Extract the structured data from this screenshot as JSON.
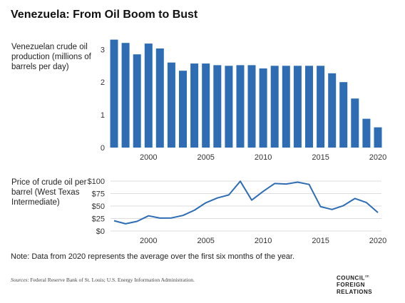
{
  "title": "Venezuela: From Oil Boom to Bust",
  "note": "Note: Data from 2020 represents the average over the first six months of the year.",
  "source": {
    "prefix": "Sources",
    "text": ": Federal Reserve Bank of St. Louis; U.S. Energy Information Administration."
  },
  "logo": {
    "line1": "COUNCIL",
    "on": "on",
    "line2": "FOREIGN",
    "line3": "RELATIONS"
  },
  "colors": {
    "bar": "#2e6db4",
    "line": "#2e6db4",
    "grid": "#dddddd"
  },
  "chart_data": [
    {
      "type": "bar",
      "ylabel": "Venezuelan crude oil production (millions of barrels per day)",
      "x": [
        1997,
        1998,
        1999,
        2000,
        2001,
        2002,
        2003,
        2004,
        2005,
        2006,
        2007,
        2008,
        2009,
        2010,
        2011,
        2012,
        2013,
        2014,
        2015,
        2016,
        2017,
        2018,
        2019,
        2020
      ],
      "values": [
        3.3,
        3.2,
        2.85,
        3.18,
        3.03,
        2.6,
        2.35,
        2.57,
        2.57,
        2.52,
        2.5,
        2.52,
        2.52,
        2.42,
        2.5,
        2.5,
        2.5,
        2.5,
        2.5,
        2.27,
        2.0,
        1.5,
        0.88,
        0.62
      ],
      "xticks": [
        "2000",
        "2005",
        "2010",
        "2015",
        "2020"
      ],
      "yticks": [
        "0",
        "1",
        "2",
        "3"
      ],
      "ylim": [
        0,
        3.4
      ],
      "grid": false
    },
    {
      "type": "line",
      "ylabel": "Price of crude oil per barrel (West Texas Intermediate)",
      "x": [
        1997,
        1998,
        1999,
        2000,
        2001,
        2002,
        2003,
        2004,
        2005,
        2006,
        2007,
        2008,
        2009,
        2010,
        2011,
        2012,
        2013,
        2014,
        2015,
        2016,
        2017,
        2018,
        2019,
        2020
      ],
      "values": [
        20.6,
        14.4,
        19.3,
        30.4,
        25.9,
        26.1,
        31.1,
        41.5,
        56.6,
        66.1,
        72.3,
        99.7,
        61.9,
        79.5,
        95.1,
        94.2,
        97.9,
        93.3,
        48.7,
        43.2,
        50.8,
        65.2,
        57.0,
        37.0
      ],
      "xticks": [
        "2000",
        "2005",
        "2010",
        "2015",
        "2020"
      ],
      "yticks": [
        "$0",
        "$25",
        "$50",
        "$75",
        "$100"
      ],
      "ylim": [
        0,
        100
      ],
      "grid": true
    }
  ]
}
